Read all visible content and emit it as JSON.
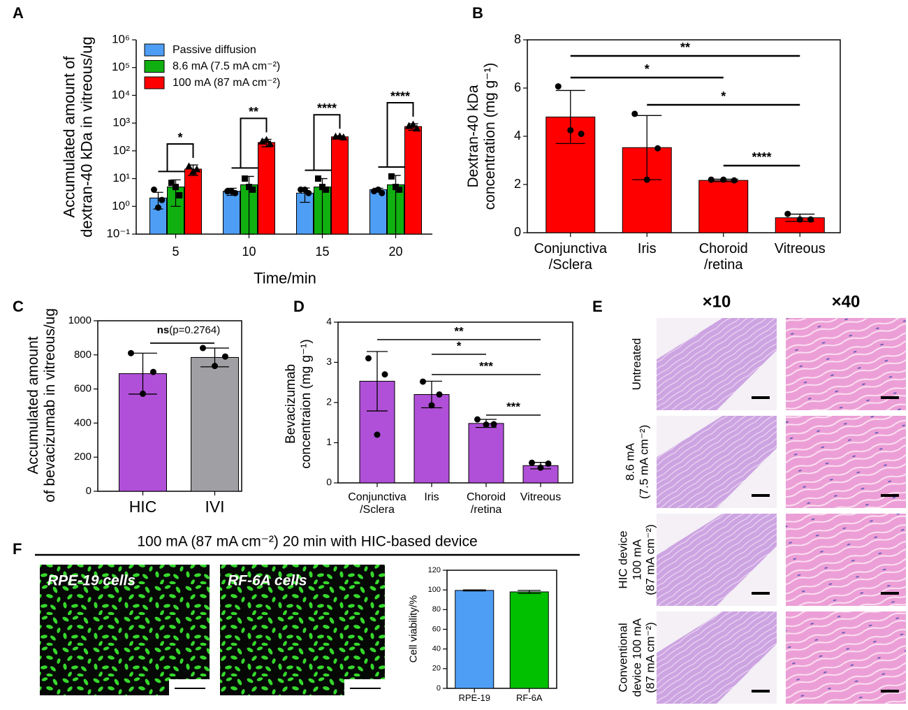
{
  "chart_data": [
    {
      "panel": "A",
      "type": "bar",
      "log_y": true,
      "y_label": "Accumulated amount of\ndextran-40 kDa in vitreous/ug",
      "x_label": "Time/min",
      "categories": [
        "5",
        "10",
        "15",
        "20"
      ],
      "series": [
        {
          "name": "Passive diffusion",
          "color": "#4f9ef5",
          "values": [
            2,
            3.5,
            3,
            4
          ],
          "errors": [
            1.2,
            1,
            1.6,
            0.5
          ],
          "points": [
            [
              4,
              1.7,
              0.9
            ],
            [
              3.5,
              3,
              3.5
            ],
            [
              4,
              3,
              4
            ],
            [
              3.5,
              3,
              4
            ]
          ]
        },
        {
          "name": "8.6 mA (7.5 mA cm⁻²)",
          "color": "#10b010",
          "values": [
            5,
            6,
            5,
            6
          ],
          "errors": [
            4,
            6,
            5,
            7
          ],
          "points": [
            [
              7,
              2.5,
              5
            ],
            [
              10,
              4,
              5
            ],
            [
              10,
              4,
              5
            ],
            [
              12,
              4,
              5
            ]
          ]
        },
        {
          "name": "100 mA (87 mA cm⁻²)",
          "color": "#ff0000",
          "values": [
            22,
            200,
            320,
            750
          ],
          "errors": [
            9,
            60,
            30,
            200
          ],
          "points": [
            [
              28,
              22,
              18
            ],
            [
              220,
              180,
              250
            ],
            [
              330,
              310,
              340
            ],
            [
              800,
              650,
              900
            ]
          ]
        }
      ],
      "ylim": [
        0.1,
        1000000
      ],
      "yticks": [
        {
          "value": 0.1,
          "label": "10⁻¹"
        },
        {
          "value": 1,
          "label": "10⁰"
        },
        {
          "value": 10,
          "label": "10¹"
        },
        {
          "value": 100,
          "label": "10²"
        },
        {
          "value": 1000,
          "label": "10³"
        },
        {
          "value": 10000,
          "label": "10⁴"
        },
        {
          "value": 100000,
          "label": "10⁵"
        },
        {
          "value": 1000000,
          "label": "10⁶"
        }
      ],
      "annotations": [
        "*",
        "**",
        "****",
        "****"
      ]
    },
    {
      "panel": "B",
      "type": "bar",
      "y_label": "Dextran-40 kDa\nconcentration (mg g⁻¹)",
      "categories": [
        "Conjunctiva\n/Sclera",
        "Iris",
        "Choroid\n/retina",
        "Vitreous"
      ],
      "values": [
        4.8,
        3.53,
        2.17,
        0.62
      ],
      "errors": [
        1.1,
        1.33,
        0.05,
        0.15
      ],
      "points": [
        [
          6.07,
          4.1,
          4.25
        ],
        [
          4.93,
          3.5,
          2.2
        ],
        [
          2.2,
          2.17,
          2.2
        ],
        [
          0.78,
          0.55,
          0.55
        ]
      ],
      "color": "#ff0000",
      "ylim": [
        0,
        8
      ],
      "yticks": [
        0,
        2,
        4,
        6,
        8
      ],
      "annotations": [
        "**",
        "*",
        "*",
        "****"
      ]
    },
    {
      "panel": "C",
      "type": "bar",
      "y_label": "Accumulated amount\nof bevacizumab in vitreous/ug",
      "categories": [
        "HIC",
        "IVI"
      ],
      "values": [
        690,
        785
      ],
      "errors": [
        120,
        55
      ],
      "points": [
        [
          810,
          700,
          572
        ],
        [
          840,
          790,
          735
        ]
      ],
      "colors": [
        "#b050d8",
        "#a0a0a4"
      ],
      "ylim": [
        0,
        1000
      ],
      "yticks": [
        0,
        200,
        400,
        600,
        800,
        1000
      ],
      "annotations": [
        "ns",
        "(p=0.2764)"
      ]
    },
    {
      "panel": "D",
      "type": "bar",
      "y_label": "Bevacizumab\nconcentraion (mg g⁻¹)",
      "categories": [
        "Conjunctiva\n/Sclera",
        "Iris",
        "Choroid\n/retina",
        "Vitreous"
      ],
      "values": [
        2.53,
        2.2,
        1.48,
        0.43
      ],
      "errors": [
        0.74,
        0.33,
        0.1,
        0.08
      ],
      "points": [
        [
          3.1,
          2.7,
          1.2
        ],
        [
          2.52,
          2.2,
          1.93
        ],
        [
          1.58,
          1.46,
          1.45
        ],
        [
          0.5,
          0.48,
          0.38
        ]
      ],
      "color": "#b050d8",
      "ylim": [
        0,
        4
      ],
      "yticks": [
        0,
        1,
        2,
        3,
        4
      ],
      "annotations": [
        "**",
        "*",
        "***",
        "***"
      ]
    },
    {
      "type": "bar",
      "y_label": "Cell viability/%",
      "categories": [
        "RPE-19",
        "RF-6A"
      ],
      "values": [
        99.5,
        98
      ],
      "errors": [
        0.5,
        1.5
      ],
      "colors": [
        "#4f9ef5",
        "#00c000"
      ],
      "ylim": [
        0,
        120
      ],
      "yticks": [
        0,
        20,
        40,
        60,
        80,
        100,
        120
      ]
    }
  ],
  "histology": {
    "panel": "E",
    "columns": [
      "×10",
      "×40"
    ],
    "rows": [
      "Untreated",
      "8.6 mA\n(7.5 mA cm⁻²)",
      "HIC device\n100 mA\n(87 mA cm⁻²)",
      "Conventional\ndevice 100 mA\n(87 mA cm⁻²)"
    ]
  },
  "cell_panel": {
    "panel": "F",
    "title": "100 mA (87 mA cm⁻²) 20 min with HIC-based device",
    "images": [
      "RPE-19 cells",
      "RF-6A cells"
    ]
  }
}
